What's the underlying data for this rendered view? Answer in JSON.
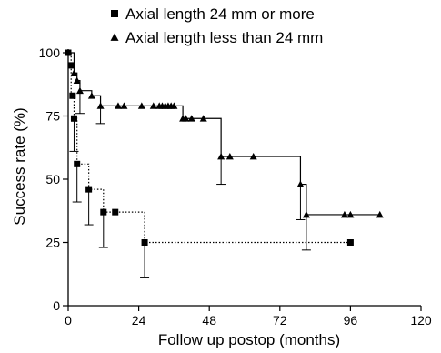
{
  "chart_data": {
    "type": "line",
    "title": "",
    "xlabel": "Follow up postop (months)",
    "ylabel": "Success rate (%)",
    "xlim": [
      0,
      120
    ],
    "ylim": [
      0,
      100
    ],
    "x_ticks": [
      "0",
      "24",
      "48",
      "72",
      "96",
      "120"
    ],
    "y_ticks": [
      "0",
      "25",
      "50",
      "75",
      "100"
    ],
    "grid": false,
    "legend_position": "top-right",
    "series": [
      {
        "name": "Axial length 24 mm or more",
        "marker": "square",
        "line_style": "dotted",
        "step_x": [
          0,
          1,
          2,
          3,
          7,
          12,
          26,
          96
        ],
        "step_y": [
          100,
          83,
          74,
          56,
          46,
          37,
          25,
          25
        ],
        "markers": [
          {
            "x": 0,
            "y": 100
          },
          {
            "x": 1,
            "y": 95
          },
          {
            "x": 1.5,
            "y": 83
          },
          {
            "x": 2,
            "y": 74
          },
          {
            "x": 3,
            "y": 56
          },
          {
            "x": 7,
            "y": 46
          },
          {
            "x": 12,
            "y": 37
          },
          {
            "x": 16,
            "y": 37
          },
          {
            "x": 26,
            "y": 25
          },
          {
            "x": 96,
            "y": 25
          }
        ],
        "error_bars": [
          {
            "x": 2,
            "y": 74,
            "lower": 61
          },
          {
            "x": 3,
            "y": 56,
            "lower": 41
          },
          {
            "x": 7,
            "y": 46,
            "lower": 32
          },
          {
            "x": 12,
            "y": 37,
            "lower": 23
          },
          {
            "x": 26,
            "y": 25,
            "lower": 11
          }
        ]
      },
      {
        "name": "Axial length less than 24 mm",
        "marker": "triangle",
        "line_style": "solid",
        "step_x": [
          0,
          2,
          3,
          4,
          8,
          11,
          39,
          52,
          79,
          81,
          106
        ],
        "step_y": [
          100,
          92,
          89,
          85,
          83,
          79,
          74,
          59,
          48,
          36,
          36
        ],
        "markers": [
          {
            "x": 2,
            "y": 92
          },
          {
            "x": 3,
            "y": 89
          },
          {
            "x": 4,
            "y": 85
          },
          {
            "x": 8,
            "y": 83
          },
          {
            "x": 11,
            "y": 79
          },
          {
            "x": 17,
            "y": 79
          },
          {
            "x": 19,
            "y": 79
          },
          {
            "x": 25,
            "y": 79
          },
          {
            "x": 29,
            "y": 79
          },
          {
            "x": 31,
            "y": 79
          },
          {
            "x": 32,
            "y": 79
          },
          {
            "x": 33,
            "y": 79
          },
          {
            "x": 34,
            "y": 79
          },
          {
            "x": 35,
            "y": 79
          },
          {
            "x": 36,
            "y": 79
          },
          {
            "x": 39,
            "y": 74
          },
          {
            "x": 40,
            "y": 74
          },
          {
            "x": 42,
            "y": 74
          },
          {
            "x": 46,
            "y": 74
          },
          {
            "x": 52,
            "y": 59
          },
          {
            "x": 55,
            "y": 59
          },
          {
            "x": 63,
            "y": 59
          },
          {
            "x": 79,
            "y": 48
          },
          {
            "x": 81,
            "y": 36
          },
          {
            "x": 94,
            "y": 36
          },
          {
            "x": 96,
            "y": 36
          },
          {
            "x": 106,
            "y": 36
          }
        ],
        "error_bars": [
          {
            "x": 4,
            "y": 85,
            "lower": 76
          },
          {
            "x": 11,
            "y": 79,
            "lower": 72
          },
          {
            "x": 52,
            "y": 59,
            "lower": 48
          },
          {
            "x": 79,
            "y": 48,
            "lower": 34
          },
          {
            "x": 81,
            "y": 36,
            "lower": 22
          }
        ]
      }
    ]
  }
}
